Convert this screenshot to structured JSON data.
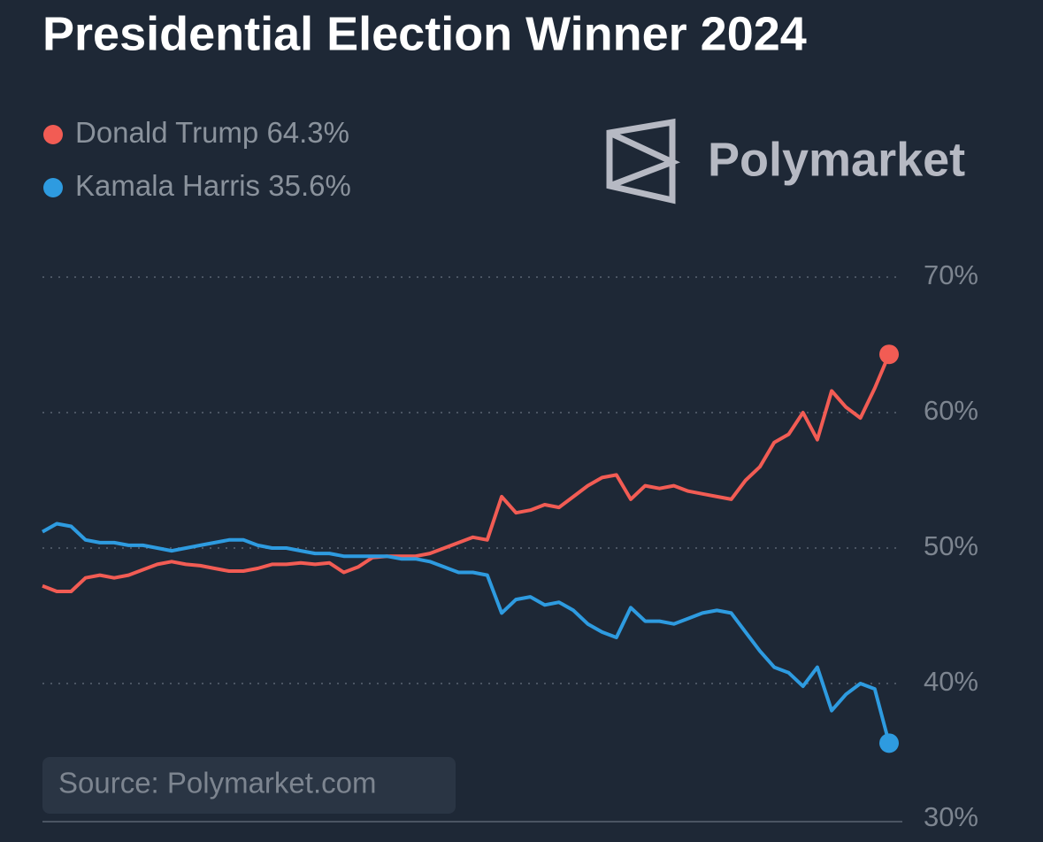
{
  "chart_data": {
    "type": "line",
    "title": "Presidential Election Winner 2024",
    "logo_text": "Polymarket",
    "source": "Source: Polymarket.com",
    "categories": [
      null,
      null,
      null,
      null,
      null,
      null,
      null,
      null,
      null,
      null,
      null,
      null,
      null,
      null,
      null,
      null,
      null,
      null,
      null,
      null,
      null,
      null,
      null,
      null,
      null,
      null,
      null,
      null,
      null,
      null,
      null,
      null,
      null,
      null,
      null,
      null,
      null,
      null,
      null,
      null,
      null,
      null,
      null,
      null,
      null,
      null,
      null,
      null,
      null,
      null,
      null,
      null,
      null,
      null,
      null,
      null,
      null,
      null,
      null,
      null
    ],
    "series": [
      {
        "name": "Donald Trump",
        "color": "#f25c54",
        "values": [
          47.2,
          46.8,
          46.8,
          47.8,
          48.0,
          47.8,
          48.0,
          48.4,
          48.8,
          49.0,
          48.8,
          48.7,
          48.5,
          48.3,
          48.3,
          48.5,
          48.8,
          48.8,
          48.9,
          48.8,
          48.9,
          48.2,
          48.6,
          49.3,
          49.4,
          49.4,
          49.4,
          49.6,
          50.0,
          50.4,
          50.8,
          50.6,
          53.8,
          52.6,
          52.8,
          53.2,
          53.0,
          53.8,
          54.6,
          55.2,
          55.4,
          53.6,
          54.6,
          54.4,
          54.6,
          54.2,
          54.0,
          53.8,
          53.6,
          55.0,
          56.0,
          57.8,
          58.4,
          60.0,
          58.0,
          61.6,
          60.4,
          59.6,
          61.8,
          64.3
        ],
        "value_labels": [
          null,
          null,
          null,
          null,
          null,
          null,
          null,
          null,
          null,
          null,
          null,
          null,
          null,
          null,
          null,
          null,
          null,
          null,
          null,
          null,
          null,
          null,
          null,
          null,
          null,
          null,
          null,
          null,
          null,
          null,
          null,
          null,
          null,
          null,
          null,
          null,
          null,
          null,
          null,
          null,
          null,
          null,
          null,
          null,
          null,
          null,
          null,
          null,
          null,
          null,
          null,
          null,
          null,
          null,
          null,
          null,
          null,
          null,
          null,
          "64.3%"
        ]
      },
      {
        "name": "Kamala Harris",
        "color": "#2e9be0",
        "values": [
          51.2,
          51.8,
          51.6,
          50.6,
          50.4,
          50.4,
          50.2,
          50.2,
          50.0,
          49.8,
          50.0,
          50.2,
          50.4,
          50.6,
          50.6,
          50.2,
          50.0,
          50.0,
          49.8,
          49.6,
          49.6,
          49.4,
          49.4,
          49.4,
          49.4,
          49.2,
          49.2,
          49.0,
          48.6,
          48.2,
          48.2,
          48.0,
          45.2,
          46.2,
          46.4,
          45.8,
          46.0,
          45.4,
          44.4,
          43.8,
          43.4,
          45.6,
          44.6,
          44.6,
          44.4,
          44.8,
          45.2,
          45.4,
          45.2,
          43.8,
          42.4,
          41.2,
          40.8,
          39.8,
          41.2,
          38.0,
          39.2,
          40.0,
          39.6,
          35.6
        ],
        "value_labels": [
          null,
          null,
          null,
          null,
          null,
          null,
          null,
          null,
          null,
          null,
          null,
          null,
          null,
          null,
          null,
          null,
          null,
          null,
          null,
          null,
          null,
          null,
          null,
          null,
          null,
          null,
          null,
          null,
          null,
          null,
          null,
          null,
          null,
          null,
          null,
          null,
          null,
          null,
          null,
          null,
          null,
          null,
          null,
          null,
          null,
          null,
          null,
          null,
          null,
          null,
          null,
          null,
          null,
          null,
          null,
          null,
          null,
          null,
          null,
          "35.6%"
        ]
      }
    ],
    "ylim": [
      30,
      70
    ],
    "yticks": [
      {
        "value": 30,
        "label": "30%"
      },
      {
        "value": 40,
        "label": "40%"
      },
      {
        "value": 50,
        "label": "50%"
      },
      {
        "value": 60,
        "label": "60%"
      },
      {
        "value": 70,
        "label": "70%"
      }
    ],
    "grid": true
  }
}
